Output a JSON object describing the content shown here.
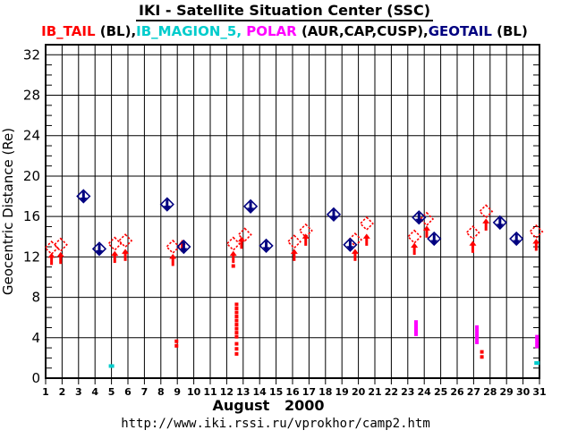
{
  "title": "IKI - Satellite Situation Center (SSC)",
  "legend": {
    "segments": [
      {
        "text": "IB_TAIL",
        "color": "#ff0000"
      },
      {
        "text": " (BL),",
        "color": "#000000"
      },
      {
        "text": "IB_MAGION_5, ",
        "color": "#00cccc"
      },
      {
        "text": "POLAR",
        "color": "#ff00ff"
      },
      {
        "text": " (AUR,CAP,CUSP),",
        "color": "#000000"
      },
      {
        "text": "GEOTAIL",
        "color": "#000080"
      },
      {
        "text": " (BL)",
        "color": "#000000"
      }
    ]
  },
  "footer": {
    "month_label": "August   2000",
    "url": "http://www.iki.rssi.ru/vprokhor/camp2.htm"
  },
  "chart_data": {
    "type": "scatter",
    "title": "IKI - Satellite Situation Center (SSC)",
    "xlabel": "August 2000",
    "ylabel": "Geocentric Distance (Re)",
    "x_range": [
      1,
      31
    ],
    "x_tick_days": [
      1,
      2,
      3,
      4,
      5,
      6,
      7,
      8,
      9,
      10,
      11,
      12,
      13,
      14,
      15,
      16,
      17,
      18,
      19,
      20,
      21,
      22,
      23,
      24,
      25,
      26,
      27,
      28,
      29,
      30,
      31
    ],
    "y_range": [
      0,
      33
    ],
    "y_major_ticks": [
      0,
      4,
      8,
      12,
      16,
      20,
      24,
      28,
      32
    ],
    "y_minor_step": 1,
    "grid": {
      "vertical_per_day": true,
      "horizontal_major": true,
      "frame": true
    },
    "series": [
      {
        "name": "IB_TAIL",
        "color": "#ff0000",
        "diamonds": [
          [
            1.36,
            12.9
          ],
          [
            1.91,
            13.2
          ],
          [
            5.2,
            13.3
          ],
          [
            5.84,
            13.6
          ],
          [
            8.73,
            13.0
          ],
          [
            12.4,
            13.3
          ],
          [
            13.1,
            14.2
          ],
          [
            16.1,
            13.5
          ],
          [
            16.8,
            14.6
          ],
          [
            19.8,
            13.7
          ],
          [
            20.5,
            15.3
          ],
          [
            23.4,
            14.0
          ],
          [
            24.15,
            15.75
          ],
          [
            26.95,
            14.4
          ],
          [
            27.75,
            16.5
          ],
          [
            30.8,
            14.5
          ]
        ],
        "arrows": [
          [
            1.36,
            12.4
          ],
          [
            1.91,
            12.5
          ],
          [
            5.2,
            12.6
          ],
          [
            5.84,
            12.8
          ],
          [
            8.73,
            12.3
          ],
          [
            9.3,
            13.7
          ],
          [
            12.4,
            12.6
          ],
          [
            12.9,
            14.0
          ],
          [
            16.1,
            12.8
          ],
          [
            16.8,
            14.3
          ],
          [
            19.8,
            12.8
          ],
          [
            20.5,
            14.3
          ],
          [
            23.4,
            13.4
          ],
          [
            24.15,
            15.1
          ],
          [
            26.95,
            13.6
          ],
          [
            27.75,
            15.8
          ],
          [
            30.8,
            13.8
          ]
        ],
        "dots": [
          [
            8.95,
            3.65
          ],
          [
            8.95,
            3.2
          ],
          [
            12.4,
            11.1
          ],
          [
            12.6,
            7.3
          ],
          [
            12.6,
            6.9
          ],
          [
            12.6,
            6.5
          ],
          [
            12.6,
            6.1
          ],
          [
            12.6,
            5.7
          ],
          [
            12.6,
            5.3
          ],
          [
            12.6,
            4.9
          ],
          [
            12.6,
            4.5
          ],
          [
            12.6,
            4.1
          ],
          [
            12.6,
            3.4
          ],
          [
            12.6,
            2.9
          ],
          [
            12.6,
            2.4
          ],
          [
            27.5,
            2.6
          ],
          [
            27.5,
            2.1
          ]
        ]
      },
      {
        "name": "IB_MAGION_5",
        "color": "#00cccc",
        "dots": [
          [
            5.0,
            1.2
          ],
          [
            30.85,
            1.5
          ]
        ]
      },
      {
        "name": "POLAR",
        "color": "#ff00ff",
        "dots": [
          [
            23.5,
            5.6
          ],
          [
            23.5,
            5.38
          ],
          [
            23.5,
            5.16
          ],
          [
            23.5,
            4.94
          ],
          [
            23.5,
            4.72
          ],
          [
            23.5,
            4.5
          ],
          [
            23.5,
            4.3
          ],
          [
            27.2,
            5.1
          ],
          [
            27.2,
            4.87
          ],
          [
            27.2,
            4.64
          ],
          [
            27.2,
            4.41
          ],
          [
            27.2,
            4.19
          ],
          [
            27.2,
            3.96
          ],
          [
            27.2,
            3.73
          ],
          [
            27.2,
            3.5
          ],
          [
            30.85,
            4.15
          ],
          [
            30.85,
            3.94
          ],
          [
            30.85,
            3.73
          ],
          [
            30.85,
            3.52
          ],
          [
            30.85,
            3.31
          ],
          [
            30.85,
            3.1
          ]
        ]
      },
      {
        "name": "GEOTAIL",
        "color": "#000080",
        "diamonds": [
          [
            3.3,
            18.0
          ],
          [
            4.26,
            12.8
          ],
          [
            8.38,
            17.2
          ],
          [
            9.39,
            13.0
          ],
          [
            13.45,
            17.0
          ],
          [
            14.4,
            13.1
          ],
          [
            18.5,
            16.2
          ],
          [
            19.5,
            13.2
          ],
          [
            23.68,
            15.9
          ],
          [
            24.6,
            13.8
          ],
          [
            28.6,
            15.4
          ],
          [
            29.6,
            13.8
          ]
        ]
      }
    ]
  }
}
